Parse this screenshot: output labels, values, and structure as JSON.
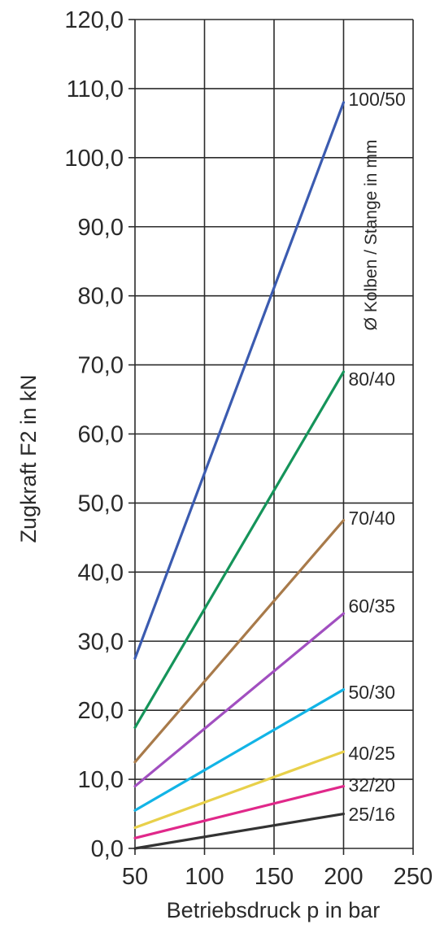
{
  "chart_data": {
    "type": "line",
    "title": "",
    "xlabel": "Betriebsdruck p in bar",
    "ylabel": "Zugkraft F2 in kN",
    "xlim": [
      50,
      250
    ],
    "ylim": [
      0,
      120
    ],
    "x_ticks": [
      "50",
      "100",
      "150",
      "200",
      "250"
    ],
    "y_ticks": [
      "0,0",
      "10,0",
      "20,0",
      "30,0",
      "40,0",
      "50,0",
      "60,0",
      "70,0",
      "80,0",
      "90,0",
      "100,0",
      "110,0",
      "120,0"
    ],
    "grid": true,
    "legend_title": "Ø Kolben / Stange in mm",
    "x": [
      50,
      200
    ],
    "series": [
      {
        "name": "100/50",
        "values": [
          27.5,
          108.0
        ],
        "color": "#3b5bb0"
      },
      {
        "name": "80/40",
        "values": [
          17.5,
          69.0
        ],
        "color": "#15945a"
      },
      {
        "name": "70/40",
        "values": [
          12.5,
          47.5
        ],
        "color": "#a87a4a"
      },
      {
        "name": "60/35",
        "values": [
          9.0,
          34.0
        ],
        "color": "#a14fc0"
      },
      {
        "name": "50/30",
        "values": [
          5.5,
          23.0
        ],
        "color": "#12b4e6"
      },
      {
        "name": "40/25",
        "values": [
          3.0,
          14.0
        ],
        "color": "#e8d04a"
      },
      {
        "name": "32/20",
        "values": [
          1.5,
          9.0
        ],
        "color": "#e0288a"
      },
      {
        "name": "25/16",
        "values": [
          0.0,
          5.0
        ],
        "color": "#333333"
      }
    ]
  }
}
